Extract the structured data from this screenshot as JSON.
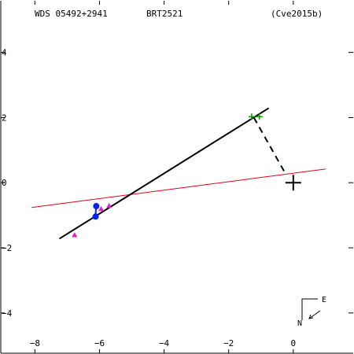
{
  "header": {
    "wds_id": "WDS 05492+2941",
    "discoverer": "BRT2521",
    "reference": "(Cve2015b)"
  },
  "chart_data": {
    "type": "scatter",
    "title": "",
    "xlabel": "",
    "ylabel": "",
    "xlim": [
      -9.08,
      1.88
    ],
    "ylim": [
      -5.26,
      5.61
    ],
    "x_ticks": [
      -8,
      -6,
      -4,
      -2,
      0
    ],
    "y_ticks": [
      4,
      2,
      0,
      -2,
      -4
    ],
    "x_tick_labels": [
      "−8",
      "−6",
      "−4",
      "−2",
      "0"
    ],
    "y_tick_labels": [
      "4",
      "2",
      "0",
      "−2",
      "−4"
    ],
    "grid": false,
    "primary_star": {
      "x": 0,
      "y": 0,
      "marker": "cross",
      "color": "#000000"
    },
    "orbit_line": {
      "points": [
        [
          -7.24,
          -1.72
        ],
        [
          -0.76,
          2.29
        ]
      ],
      "color": "#000000"
    },
    "line_of_nodes": {
      "points": [
        [
          -8.1,
          -0.76
        ],
        [
          1.0,
          0.42
        ]
      ],
      "color": "#e0001a"
    },
    "periastron_link": {
      "points": [
        [
          -1.22,
          2.0
        ],
        [
          -0.22,
          0.24
        ]
      ],
      "color": "#000000",
      "style": "dashed"
    },
    "series": [
      {
        "marker": "circle",
        "color": "#0022ee",
        "points": [
          [
            -6.1,
            -0.72
          ],
          [
            -6.12,
            -1.04
          ]
        ]
      },
      {
        "marker": "triangle",
        "color": "#e020d0",
        "points": [
          [
            -6.77,
            -1.6
          ],
          [
            -5.95,
            -0.8
          ],
          [
            -5.7,
            -0.7
          ]
        ]
      },
      {
        "marker": "plus",
        "color": "#00a000",
        "points": [
          [
            -1.29,
            2.03
          ],
          [
            -1.05,
            2.03
          ]
        ]
      }
    ],
    "residual_segments": [
      [
        [
          -6.1,
          -0.72
        ],
        [
          -6.12,
          -0.95
        ]
      ]
    ],
    "compass": {
      "north_label": "N",
      "east_label": "E"
    }
  }
}
